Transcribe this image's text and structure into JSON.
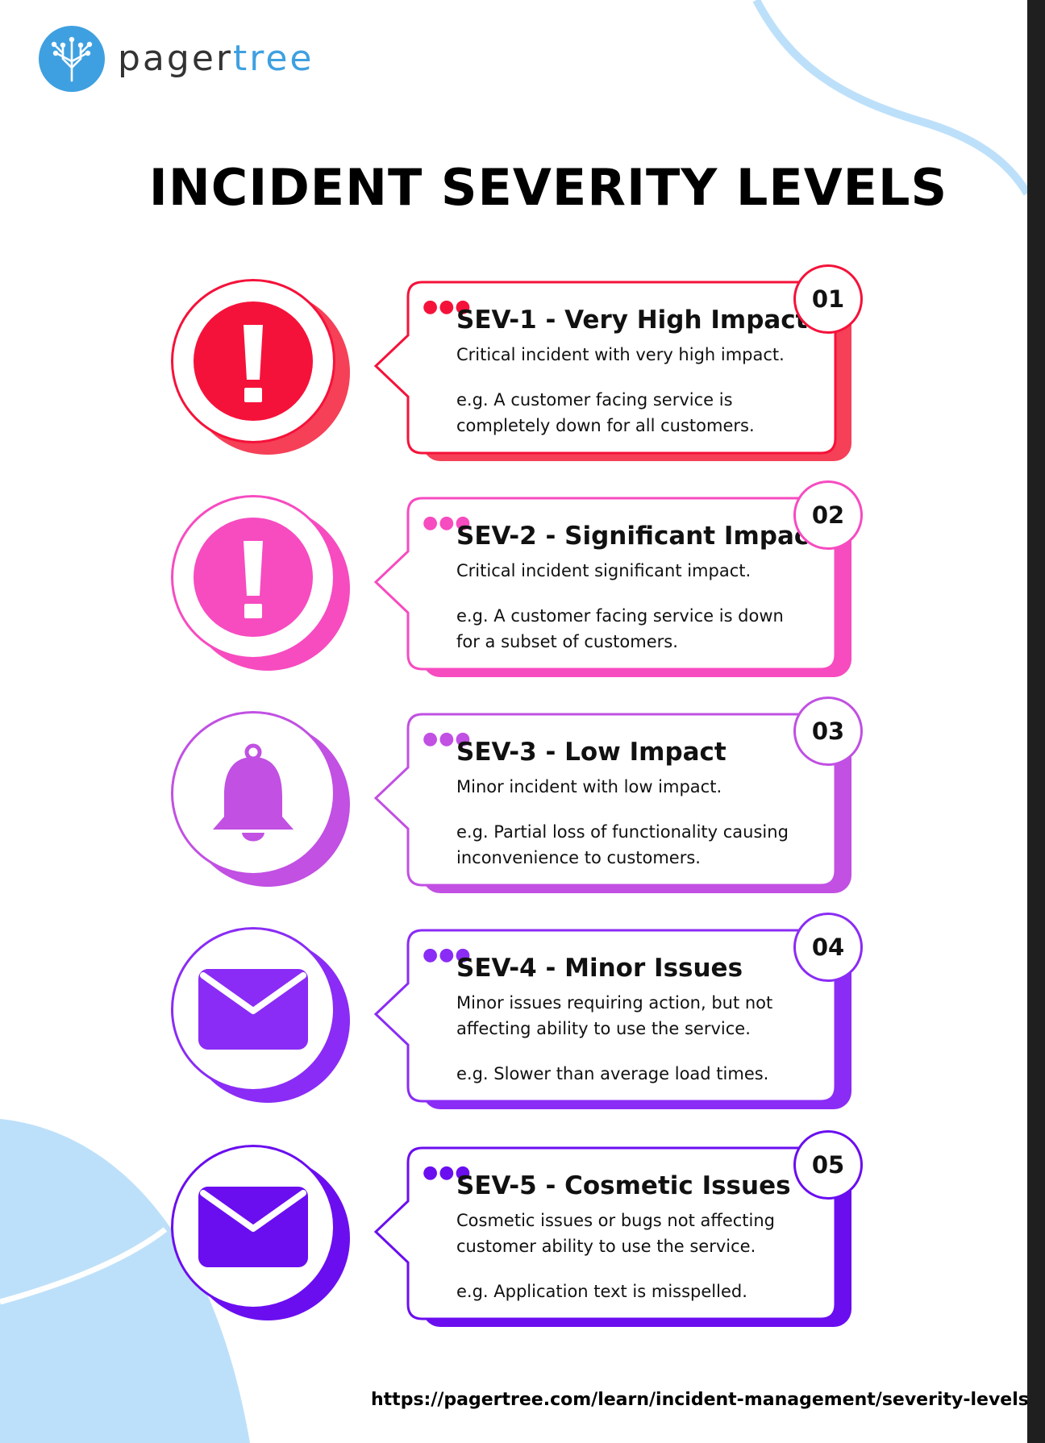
{
  "brand": {
    "name_part1": "pager",
    "name_part2": "tree",
    "accent": "#3ea0e0",
    "logo_icon": "tree-circuit-icon"
  },
  "title": "INCIDENT SEVERITY LEVELS",
  "levels": [
    {
      "number": "01",
      "title": "SEV-1 - Very High Impact",
      "description": "Critical incident with very high impact.",
      "example": "e.g. A customer facing service is completely down for all customers.",
      "icon": "exclamation-icon",
      "color": "#f5123a",
      "shadow": "#f54057"
    },
    {
      "number": "02",
      "title": "SEV-2 - Significant Impact",
      "description": "Critical incident significant impact.",
      "example": "e.g. A customer facing service is down for a subset of customers.",
      "icon": "exclamation-icon",
      "color": "#f74bc0",
      "shadow": "#f74bc0"
    },
    {
      "number": "03",
      "title": "SEV-3 - Low Impact",
      "description": "Minor incident with low impact.",
      "example": "e.g. Partial loss of functionality causing inconvenience to customers.",
      "icon": "bell-icon",
      "color": "#c150e3",
      "shadow": "#c150e3"
    },
    {
      "number": "04",
      "title": "SEV-4 - Minor Issues",
      "description": "Minor issues requiring action, but not affecting ability to use the service.",
      "example": "e.g. Slower than average load times.",
      "icon": "envelope-icon",
      "color": "#8a2cf5",
      "shadow": "#8a2cf5"
    },
    {
      "number": "05",
      "title": "SEV-5 - Cosmetic Issues",
      "description": "Cosmetic issues or bugs not affecting customer ability to use the service.",
      "example": "e.g. Application text is misspelled.",
      "icon": "envelope-icon",
      "color": "#6a0ef0",
      "shadow": "#6a0ef0"
    }
  ],
  "footer_url": "https://pagertree.com/learn/incident-management/severity-levels",
  "decoration_color": "#bde0fa"
}
